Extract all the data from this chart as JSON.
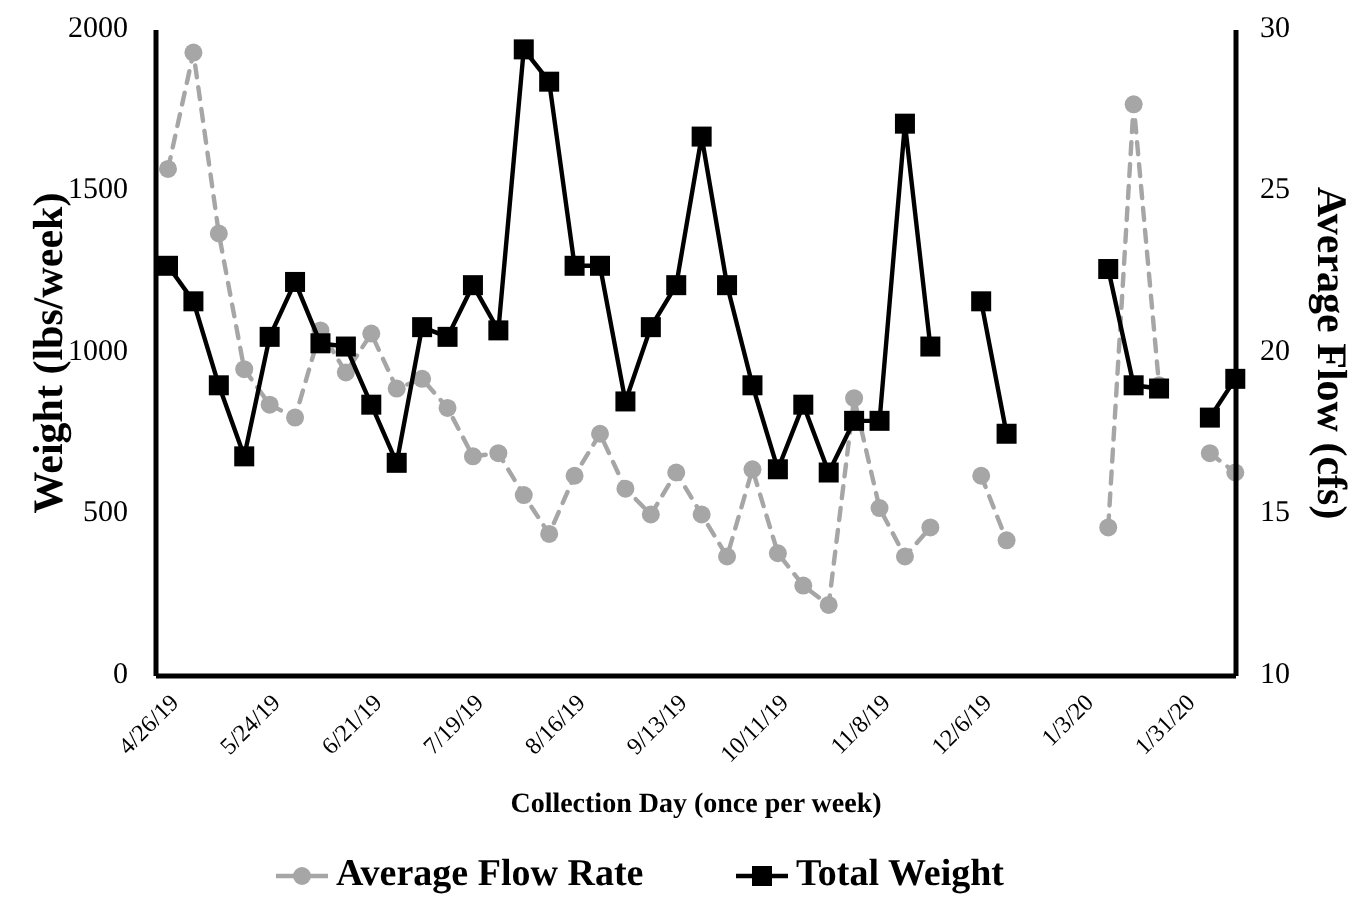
{
  "chart_data": {
    "type": "line",
    "xlabel": "Collection Day (once per week)",
    "ylabel": "Weight (lbs/week)",
    "y2label": "Average Flow (cfs)",
    "categories": [
      "4/26/19",
      null,
      null,
      null,
      "5/24/19",
      null,
      null,
      null,
      "6/21/19",
      null,
      null,
      null,
      "7/19/19",
      null,
      null,
      null,
      "8/16/19",
      null,
      null,
      null,
      "9/13/19",
      null,
      null,
      null,
      "10/11/19",
      null,
      null,
      null,
      "11/8/19",
      null,
      null,
      null,
      "12/6/19",
      null,
      null,
      null,
      "1/3/20",
      null,
      null,
      null,
      "1/31/20",
      null,
      null
    ],
    "series": [
      {
        "name": "Average Flow Rate",
        "color": "#a6a6a6",
        "axis": "y2",
        "marker": "circle",
        "line_style": "dashed",
        "values": [
          25.7,
          29.3,
          23.7,
          19.5,
          18.4,
          18.0,
          20.7,
          19.4,
          20.6,
          18.9,
          19.2,
          18.3,
          16.8,
          16.9,
          15.6,
          14.4,
          16.2,
          17.5,
          15.8,
          15.0,
          16.3,
          15.0,
          13.7,
          16.4,
          13.8,
          12.8,
          12.2,
          18.6,
          15.2,
          13.7,
          14.6,
          null,
          16.2,
          14.2,
          null,
          null,
          null,
          14.6,
          27.7,
          19.0,
          null,
          16.9,
          16.3
        ]
      },
      {
        "name": "Total Weight",
        "color": "#000000",
        "marker": "square",
        "line_style": "solid",
        "values": [
          1270,
          1160,
          900,
          680,
          1050,
          1220,
          1030,
          1020,
          840,
          660,
          1080,
          1050,
          1210,
          1070,
          1940,
          1840,
          1270,
          1270,
          850,
          1080,
          1210,
          1670,
          1210,
          900,
          640,
          840,
          630,
          790,
          790,
          1710,
          1020,
          null,
          1160,
          750,
          null,
          null,
          null,
          1260,
          900,
          890,
          null,
          800,
          920
        ]
      }
    ],
    "ylim": [
      0,
      2000
    ],
    "yticks": [
      0,
      500,
      1000,
      1500,
      2000
    ],
    "y2lim": [
      10,
      30
    ],
    "y2ticks": [
      10,
      15,
      20,
      25,
      30
    ],
    "grid": false,
    "legend": "bottom"
  }
}
